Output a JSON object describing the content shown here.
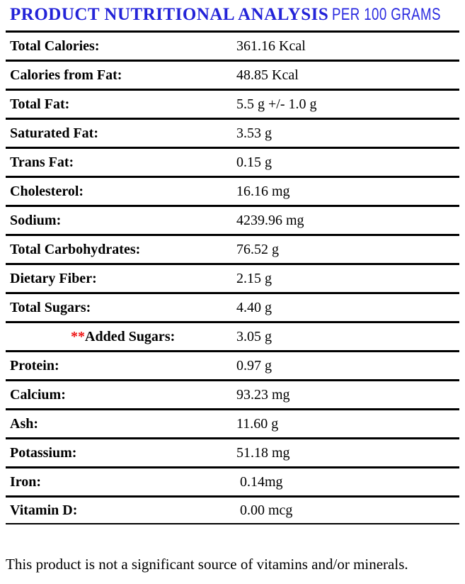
{
  "header": {
    "title_main": "PRODUCT NUTRITIONAL ANALYSIS",
    "title_suffix": "PER 100 GRAMS"
  },
  "table": {
    "rows": [
      {
        "label": "Total Calories:",
        "value": "361.16 Kcal"
      },
      {
        "label": "Calories from Fat:",
        "value": "48.85 Kcal"
      },
      {
        "label": "Total Fat:",
        "value": "5.5 g +/- 1.0 g"
      },
      {
        "label": "Saturated Fat:",
        "value": "3.53 g"
      },
      {
        "label": "Trans Fat:",
        "value": "0.15 g"
      },
      {
        "label": "Cholesterol:",
        "value": "16.16 mg"
      },
      {
        "label": "Sodium:",
        "value": "4239.96 mg"
      },
      {
        "label": "Total Carbohydrates:",
        "value": "76.52 g"
      },
      {
        "label": "Dietary Fiber:",
        "value": "2.15 g"
      },
      {
        "label": "Total Sugars:",
        "value": "4.40 g"
      },
      {
        "label": "Added Sugars:",
        "value": "3.05 g",
        "prefix": "**",
        "indented": true
      },
      {
        "label": "Protein:",
        "value": "0.97 g"
      },
      {
        "label": "Calcium:",
        "value": "93.23 mg"
      },
      {
        "label": "Ash:",
        "value": "11.60 g"
      },
      {
        "label": "Potassium:",
        "value": "51.18 mg"
      },
      {
        "label": "Iron:",
        "value": " 0.14mg"
      },
      {
        "label": "Vitamin D:",
        "value": " 0.00 mcg"
      }
    ]
  },
  "footer": {
    "note": "This product is not a significant source of vitamins and/or minerals."
  },
  "colors": {
    "title_blue": "#2323d8",
    "asterisk_red": "#ee1111",
    "rule_black": "#000000"
  }
}
